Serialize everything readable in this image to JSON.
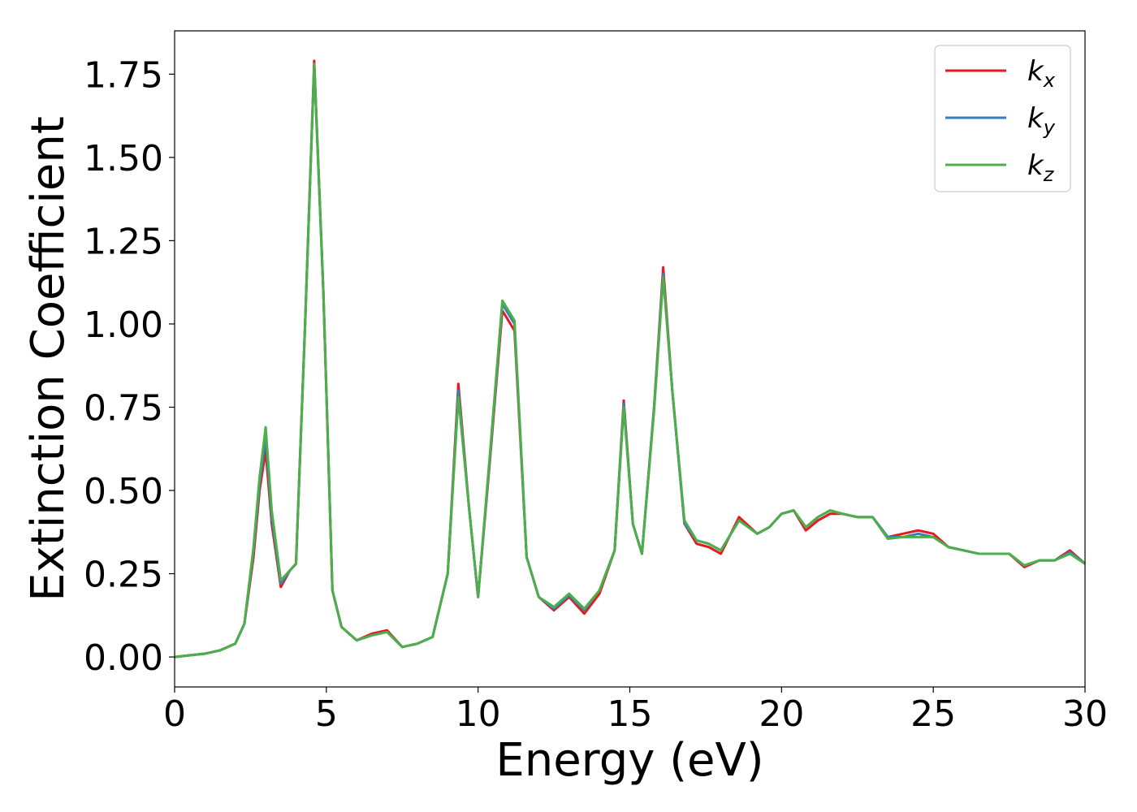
{
  "chart_data": {
    "type": "line",
    "xlabel": "Energy (eV)",
    "ylabel": "Extinction Coefficient",
    "xlim": [
      0,
      30
    ],
    "ylim": [
      -0.09,
      1.88
    ],
    "xticks": [
      0,
      5,
      10,
      15,
      20,
      25,
      30
    ],
    "xtick_labels": [
      "0",
      "5",
      "10",
      "15",
      "20",
      "25",
      "30"
    ],
    "yticks": [
      0,
      0.25,
      0.5,
      0.75,
      1.0,
      1.25,
      1.5,
      1.75
    ],
    "ytick_labels": [
      "0.00",
      "0.25",
      "0.50",
      "0.75",
      "1.00",
      "1.25",
      "1.50",
      "1.75"
    ],
    "grid": false,
    "legend_position": "top-right",
    "x": [
      0,
      0.5,
      1,
      1.5,
      2,
      2.3,
      2.6,
      2.8,
      3.0,
      3.2,
      3.5,
      3.8,
      4.0,
      4.3,
      4.6,
      4.9,
      5.2,
      5.5,
      6.0,
      6.5,
      7.0,
      7.5,
      8.0,
      8.5,
      9.0,
      9.35,
      9.7,
      10.0,
      10.4,
      10.8,
      11.2,
      11.6,
      12.0,
      12.5,
      13.0,
      13.5,
      14.0,
      14.5,
      14.8,
      15.1,
      15.4,
      15.8,
      16.1,
      16.4,
      16.8,
      17.2,
      17.6,
      18.0,
      18.6,
      19.2,
      19.6,
      20.0,
      20.4,
      20.8,
      21.2,
      21.6,
      22.0,
      22.5,
      23.0,
      23.5,
      24.0,
      24.5,
      25.0,
      25.5,
      26.0,
      26.5,
      27.0,
      27.5,
      28.0,
      28.5,
      29.0,
      29.5,
      30.0
    ],
    "series": [
      {
        "name": "k_x",
        "color": "#e41a1c",
        "label_main": "k",
        "label_sub": "x",
        "values": [
          0.0,
          0.005,
          0.01,
          0.02,
          0.04,
          0.1,
          0.3,
          0.5,
          0.62,
          0.4,
          0.21,
          0.26,
          0.28,
          1.0,
          1.79,
          1.1,
          0.2,
          0.09,
          0.05,
          0.07,
          0.08,
          0.03,
          0.04,
          0.06,
          0.25,
          0.82,
          0.45,
          0.18,
          0.6,
          1.04,
          0.98,
          0.3,
          0.18,
          0.14,
          0.18,
          0.13,
          0.19,
          0.32,
          0.77,
          0.4,
          0.31,
          0.75,
          1.17,
          0.8,
          0.4,
          0.34,
          0.33,
          0.31,
          0.42,
          0.37,
          0.39,
          0.43,
          0.44,
          0.38,
          0.41,
          0.43,
          0.43,
          0.42,
          0.42,
          0.36,
          0.37,
          0.38,
          0.37,
          0.33,
          0.32,
          0.31,
          0.31,
          0.31,
          0.27,
          0.29,
          0.29,
          0.32,
          0.28
        ]
      },
      {
        "name": "k_y",
        "color": "#377eb8",
        "label_main": "k",
        "label_sub": "y",
        "values": [
          0.0,
          0.005,
          0.01,
          0.02,
          0.04,
          0.1,
          0.32,
          0.52,
          0.66,
          0.42,
          0.22,
          0.26,
          0.28,
          1.0,
          1.78,
          1.1,
          0.2,
          0.09,
          0.05,
          0.065,
          0.075,
          0.03,
          0.04,
          0.06,
          0.25,
          0.8,
          0.45,
          0.18,
          0.61,
          1.06,
          1.0,
          0.3,
          0.18,
          0.145,
          0.185,
          0.14,
          0.2,
          0.32,
          0.76,
          0.4,
          0.31,
          0.75,
          1.15,
          0.8,
          0.4,
          0.35,
          0.34,
          0.32,
          0.41,
          0.37,
          0.39,
          0.43,
          0.44,
          0.39,
          0.42,
          0.44,
          0.43,
          0.42,
          0.42,
          0.36,
          0.36,
          0.37,
          0.36,
          0.33,
          0.32,
          0.31,
          0.31,
          0.31,
          0.275,
          0.29,
          0.29,
          0.315,
          0.28
        ]
      },
      {
        "name": "k_z",
        "color": "#4daf4a",
        "label_main": "k",
        "label_sub": "z",
        "values": [
          0.0,
          0.005,
          0.01,
          0.02,
          0.04,
          0.1,
          0.33,
          0.54,
          0.69,
          0.44,
          0.23,
          0.26,
          0.28,
          1.0,
          1.78,
          1.1,
          0.2,
          0.09,
          0.05,
          0.065,
          0.075,
          0.03,
          0.04,
          0.06,
          0.25,
          0.78,
          0.45,
          0.18,
          0.62,
          1.07,
          1.01,
          0.3,
          0.18,
          0.15,
          0.19,
          0.145,
          0.2,
          0.32,
          0.75,
          0.4,
          0.31,
          0.74,
          1.14,
          0.8,
          0.41,
          0.35,
          0.34,
          0.32,
          0.41,
          0.37,
          0.39,
          0.43,
          0.44,
          0.39,
          0.42,
          0.44,
          0.43,
          0.42,
          0.42,
          0.355,
          0.36,
          0.36,
          0.36,
          0.33,
          0.32,
          0.31,
          0.31,
          0.31,
          0.275,
          0.29,
          0.29,
          0.31,
          0.28
        ]
      }
    ]
  }
}
